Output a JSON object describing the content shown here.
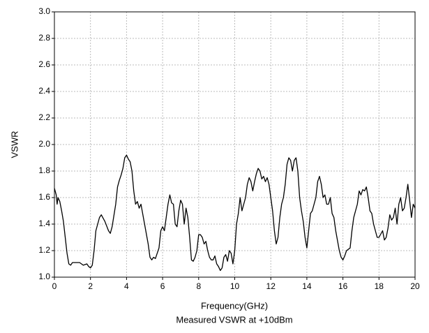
{
  "chart_data": {
    "type": "line",
    "x_label": "Frequency(GHz)",
    "y_label": "VSWR",
    "caption": "Measured VSWR at +10dBm",
    "x": [
      0,
      0.1,
      0.15,
      0.2,
      0.3,
      0.4,
      0.5,
      0.6,
      0.7,
      0.8,
      0.9,
      1.0,
      1.2,
      1.4,
      1.6,
      1.8,
      1.9,
      2.0,
      2.1,
      2.2,
      2.3,
      2.5,
      2.6,
      2.8,
      3.0,
      3.1,
      3.2,
      3.4,
      3.5,
      3.6,
      3.7,
      3.8,
      3.9,
      4.0,
      4.1,
      4.2,
      4.3,
      4.4,
      4.5,
      4.6,
      4.7,
      4.8,
      5.0,
      5.2,
      5.3,
      5.4,
      5.5,
      5.6,
      5.8,
      5.9,
      6.0,
      6.1,
      6.2,
      6.3,
      6.4,
      6.5,
      6.6,
      6.7,
      6.8,
      6.9,
      7.0,
      7.1,
      7.2,
      7.3,
      7.4,
      7.5,
      7.6,
      7.7,
      7.8,
      7.9,
      8.0,
      8.1,
      8.2,
      8.3,
      8.4,
      8.5,
      8.6,
      8.7,
      8.8,
      8.9,
      9.0,
      9.1,
      9.2,
      9.3,
      9.4,
      9.5,
      9.6,
      9.7,
      9.8,
      9.9,
      10.0,
      10.1,
      10.2,
      10.3,
      10.4,
      10.5,
      10.6,
      10.7,
      10.8,
      10.9,
      11.0,
      11.1,
      11.2,
      11.3,
      11.4,
      11.5,
      11.6,
      11.7,
      11.8,
      11.9,
      12.0,
      12.1,
      12.2,
      12.3,
      12.4,
      12.5,
      12.6,
      12.7,
      12.8,
      12.9,
      13.0,
      13.1,
      13.2,
      13.3,
      13.4,
      13.5,
      13.6,
      13.7,
      13.8,
      13.9,
      14.0,
      14.1,
      14.2,
      14.3,
      14.4,
      14.5,
      14.6,
      14.7,
      14.8,
      14.9,
      15.0,
      15.1,
      15.2,
      15.3,
      15.4,
      15.5,
      15.6,
      15.8,
      15.9,
      16.0,
      16.1,
      16.2,
      16.4,
      16.5,
      16.6,
      16.7,
      16.8,
      16.9,
      17.0,
      17.1,
      17.2,
      17.3,
      17.4,
      17.5,
      17.6,
      17.7,
      17.8,
      17.9,
      18.0,
      18.2,
      18.3,
      18.4,
      18.5,
      18.6,
      18.7,
      18.8,
      18.9,
      19.0,
      19.1,
      19.2,
      19.3,
      19.4,
      19.5,
      19.6,
      19.7,
      19.8,
      19.9,
      20.0
    ],
    "series": [
      {
        "color": "#000000",
        "values": [
          1.67,
          1.62,
          1.55,
          1.6,
          1.57,
          1.5,
          1.42,
          1.3,
          1.18,
          1.1,
          1.09,
          1.11,
          1.11,
          1.11,
          1.09,
          1.1,
          1.08,
          1.07,
          1.09,
          1.2,
          1.35,
          1.45,
          1.47,
          1.42,
          1.35,
          1.33,
          1.38,
          1.55,
          1.68,
          1.73,
          1.77,
          1.82,
          1.9,
          1.92,
          1.89,
          1.87,
          1.8,
          1.65,
          1.55,
          1.57,
          1.52,
          1.55,
          1.4,
          1.25,
          1.15,
          1.13,
          1.15,
          1.14,
          1.22,
          1.35,
          1.38,
          1.35,
          1.45,
          1.55,
          1.62,
          1.56,
          1.55,
          1.4,
          1.38,
          1.5,
          1.58,
          1.55,
          1.4,
          1.52,
          1.45,
          1.3,
          1.13,
          1.12,
          1.15,
          1.2,
          1.32,
          1.32,
          1.3,
          1.25,
          1.27,
          1.2,
          1.15,
          1.13,
          1.13,
          1.16,
          1.1,
          1.08,
          1.05,
          1.07,
          1.15,
          1.17,
          1.12,
          1.2,
          1.18,
          1.1,
          1.2,
          1.4,
          1.48,
          1.6,
          1.5,
          1.55,
          1.6,
          1.7,
          1.75,
          1.72,
          1.65,
          1.72,
          1.78,
          1.82,
          1.8,
          1.74,
          1.76,
          1.72,
          1.75,
          1.7,
          1.6,
          1.5,
          1.35,
          1.25,
          1.3,
          1.45,
          1.55,
          1.6,
          1.7,
          1.85,
          1.9,
          1.88,
          1.8,
          1.88,
          1.9,
          1.8,
          1.6,
          1.5,
          1.42,
          1.3,
          1.22,
          1.35,
          1.48,
          1.5,
          1.55,
          1.6,
          1.72,
          1.76,
          1.7,
          1.6,
          1.62,
          1.55,
          1.55,
          1.6,
          1.48,
          1.45,
          1.35,
          1.2,
          1.15,
          1.13,
          1.16,
          1.2,
          1.22,
          1.35,
          1.45,
          1.5,
          1.55,
          1.65,
          1.62,
          1.66,
          1.65,
          1.68,
          1.6,
          1.5,
          1.48,
          1.4,
          1.35,
          1.3,
          1.3,
          1.35,
          1.28,
          1.3,
          1.37,
          1.47,
          1.43,
          1.45,
          1.52,
          1.4,
          1.55,
          1.6,
          1.5,
          1.52,
          1.6,
          1.7,
          1.58,
          1.45,
          1.55,
          1.52
        ]
      }
    ],
    "xlim": [
      0,
      20
    ],
    "xticks": [
      0,
      2,
      4,
      6,
      8,
      10,
      12,
      14,
      16,
      18,
      20
    ],
    "ylim": [
      1,
      3
    ],
    "yticks": [
      {
        "value": 1,
        "label": "1.0"
      },
      1.2,
      1.4,
      1.6,
      1.8,
      {
        "value": 2,
        "label": "2.0"
      },
      2.2,
      2.4,
      2.6,
      2.8,
      {
        "value": 3,
        "label": "3.0"
      }
    ],
    "grid": true
  }
}
